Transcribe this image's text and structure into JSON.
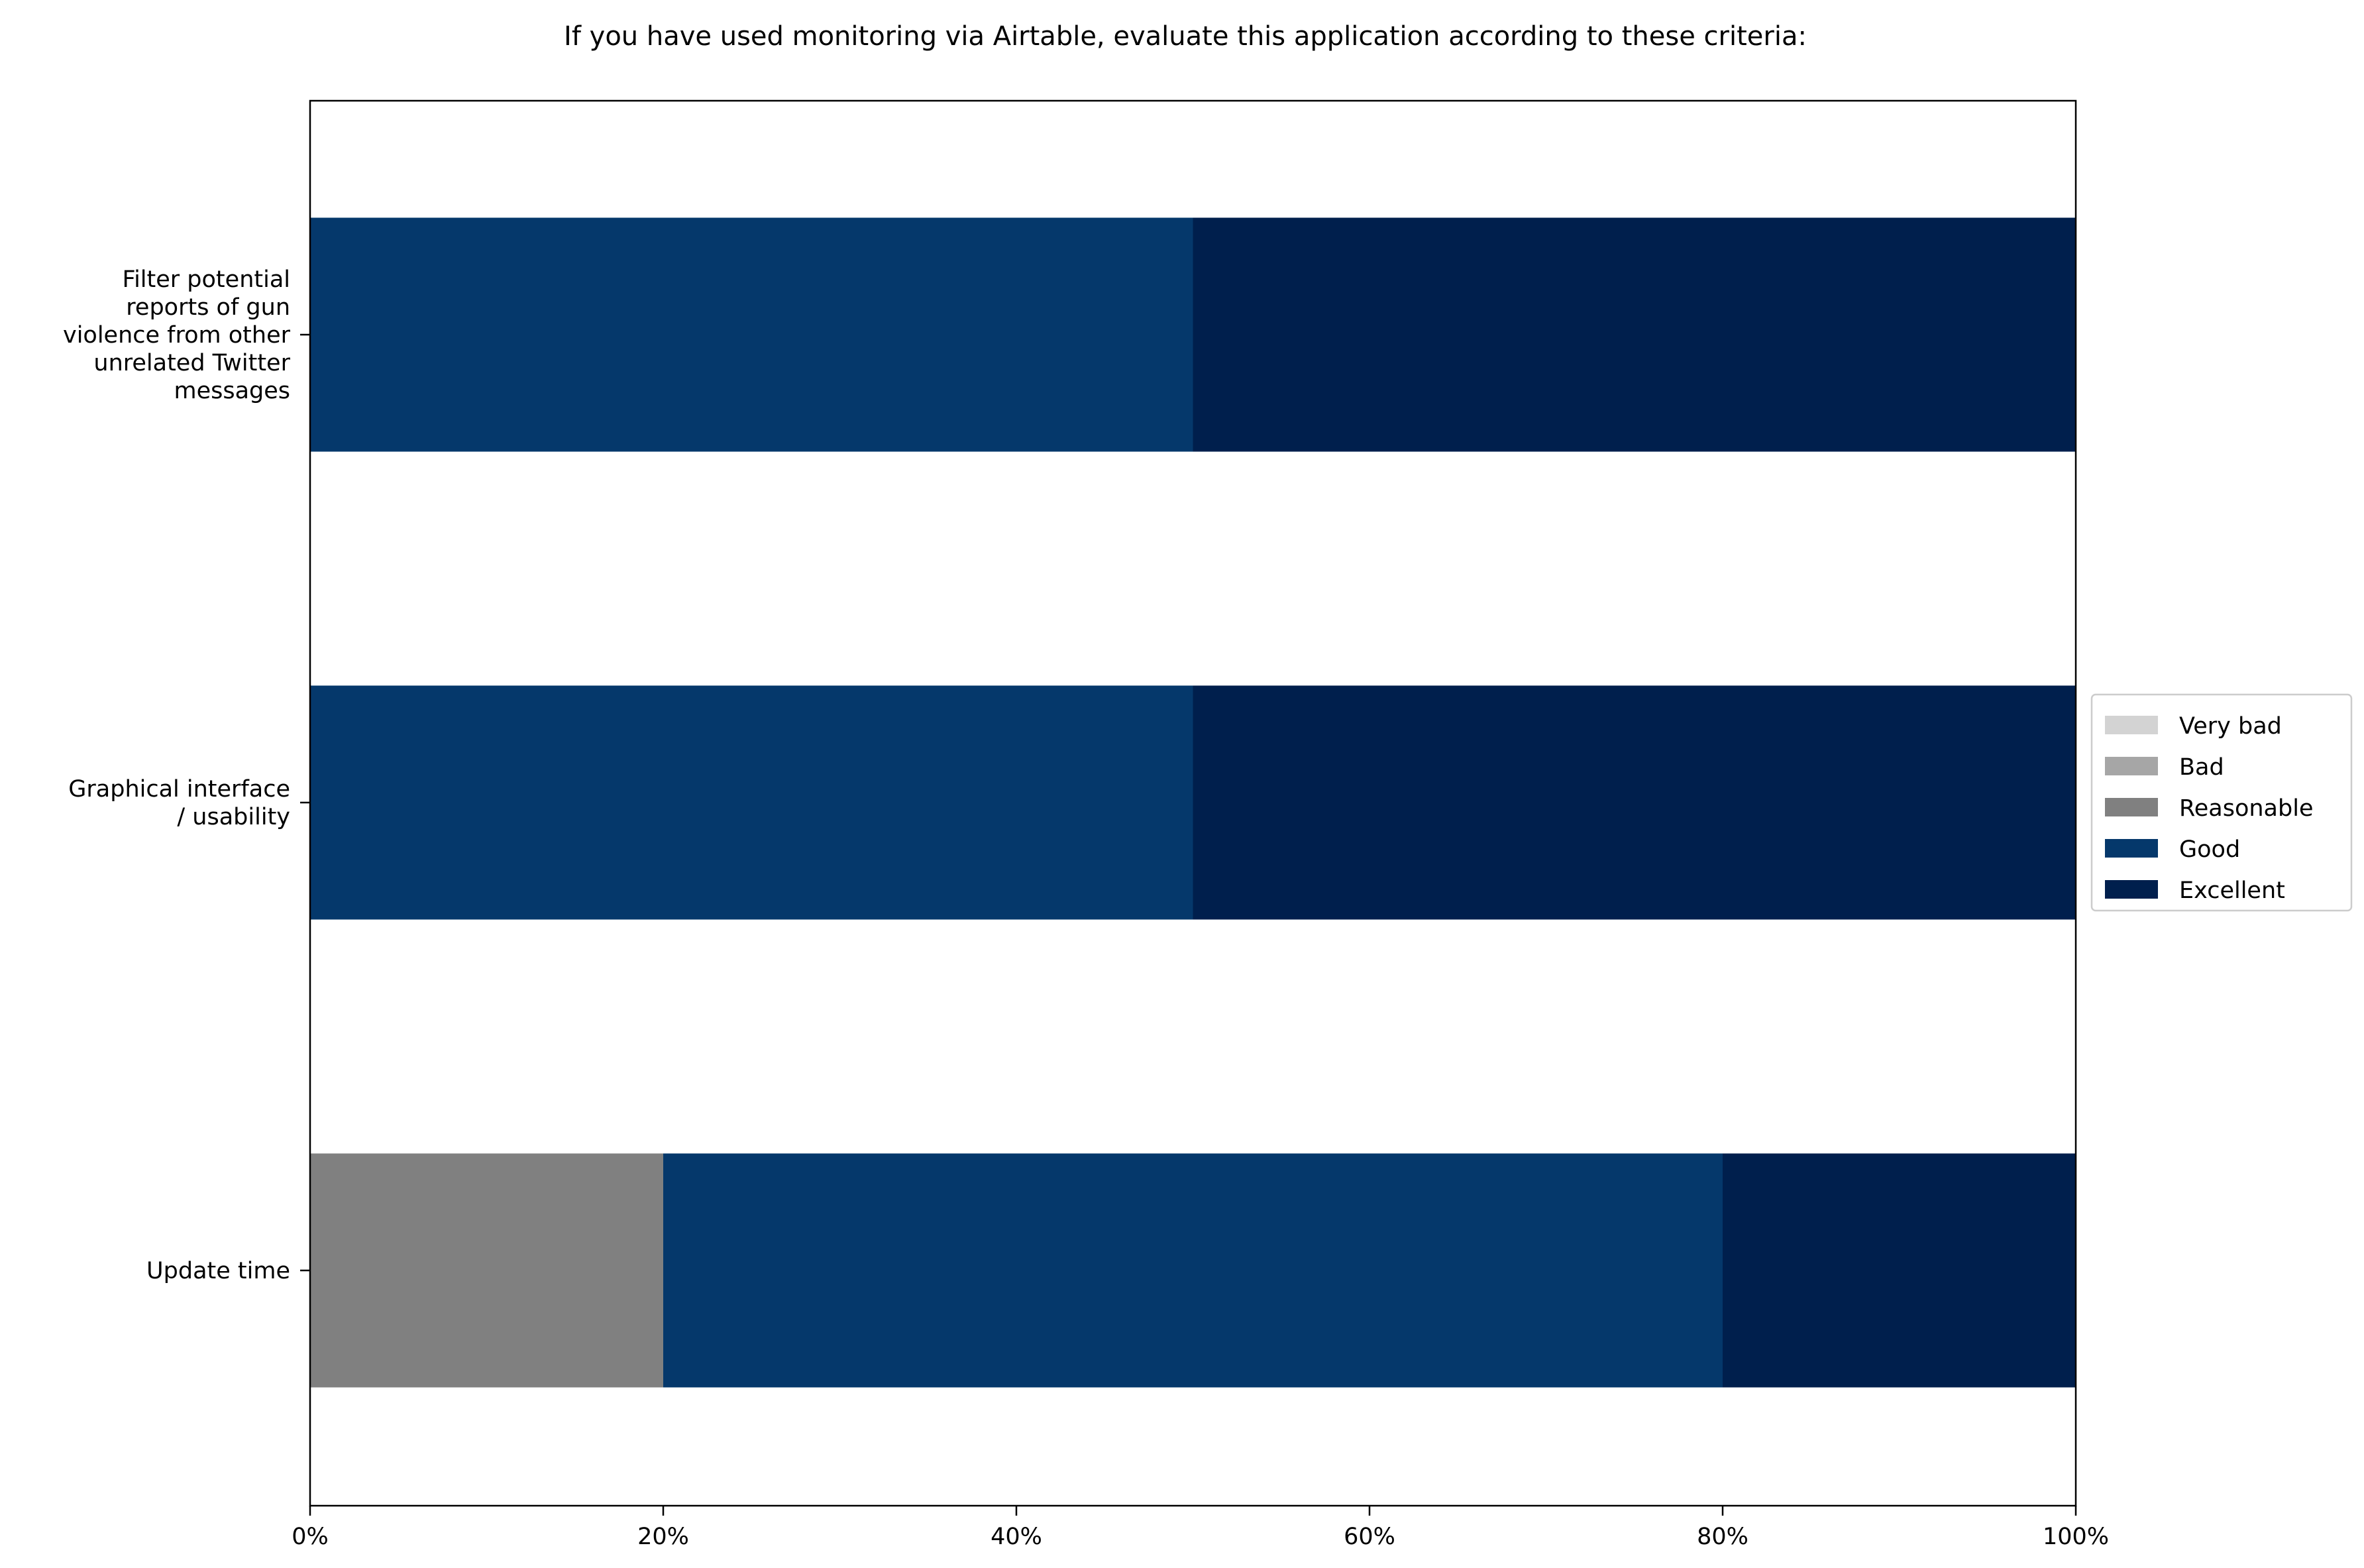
{
  "chart_data": {
    "type": "bar",
    "orientation": "horizontal",
    "stacked": true,
    "title": "If you have used monitoring via Airtable, evaluate this application according to these criteria:",
    "xlabel": "",
    "ylabel": "",
    "xlim": [
      0,
      100
    ],
    "x_tick_labels": [
      "0%",
      "20%",
      "40%",
      "60%",
      "80%",
      "100%"
    ],
    "grid": false,
    "legend_position": "right",
    "categories": [
      [
        "Filter potential",
        "reports of gun",
        "violence from other",
        "unrelated Twitter",
        "messages"
      ],
      [
        "Graphical interface",
        "/ usability"
      ],
      [
        "Update time"
      ]
    ],
    "series": [
      {
        "name": "Very bad",
        "color": "#d3d3d3",
        "values": [
          0,
          0,
          0
        ]
      },
      {
        "name": "Bad",
        "color": "#a6a6a6",
        "values": [
          0,
          0,
          0
        ]
      },
      {
        "name": "Reasonable",
        "color": "#808080",
        "values": [
          0,
          0,
          20
        ]
      },
      {
        "name": "Good",
        "color": "#05386b",
        "values": [
          50,
          50,
          60
        ]
      },
      {
        "name": "Excellent",
        "color": "#001f4d",
        "values": [
          50,
          50,
          20
        ]
      }
    ]
  }
}
